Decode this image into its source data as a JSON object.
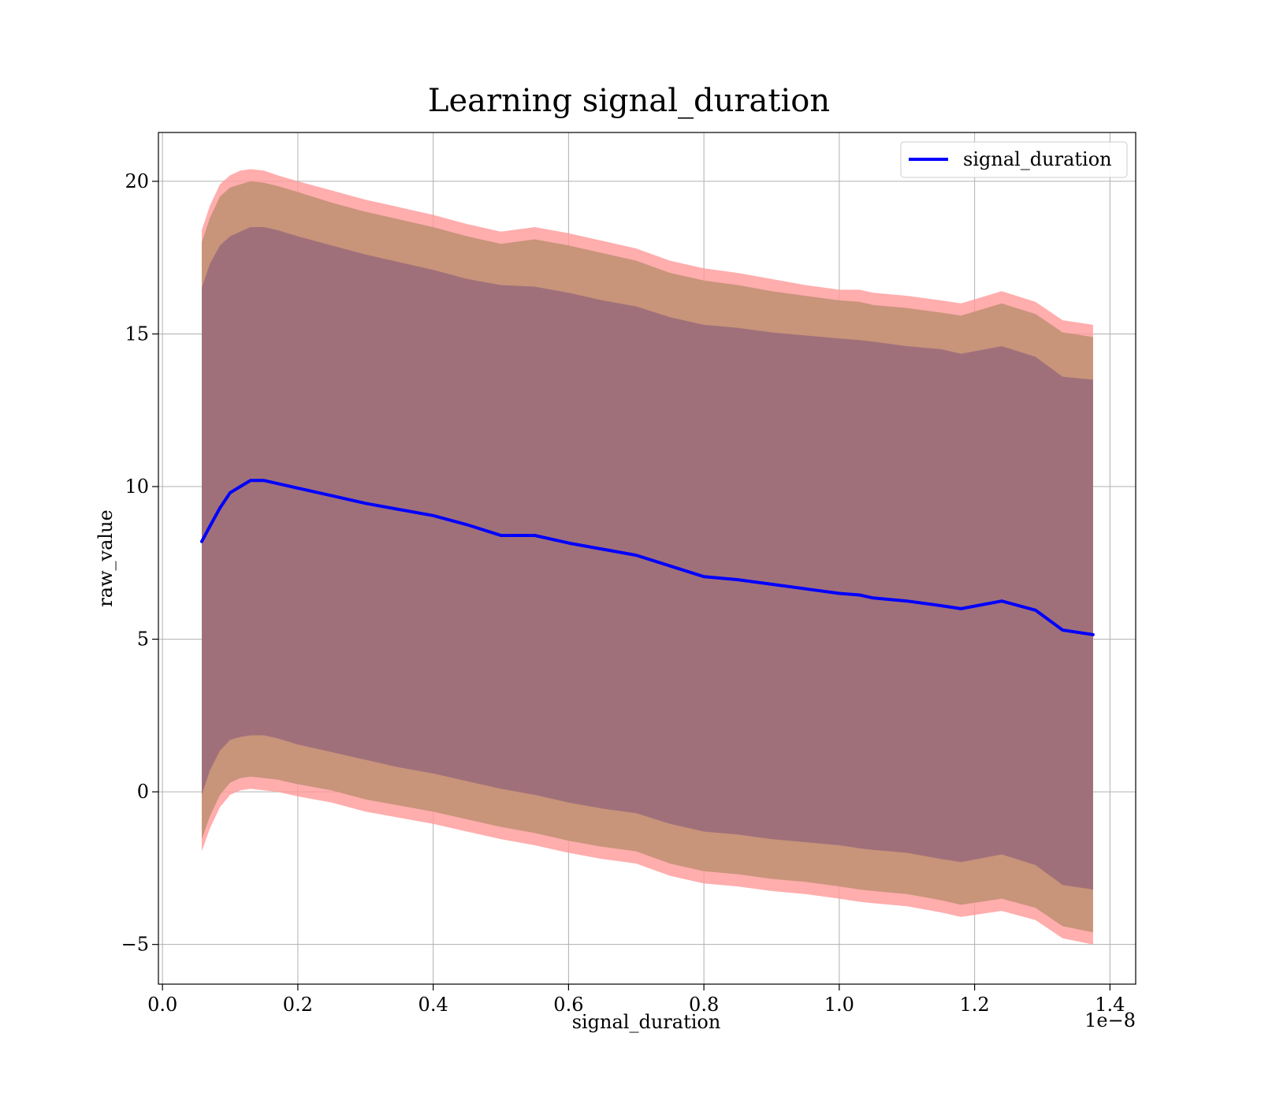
{
  "colors": {
    "mean_line": "#0000ff",
    "band_outer": "#ff9999",
    "band_middle": "#c8947a",
    "band_inner": "#a0707a",
    "grid": "#b0b0b0"
  },
  "chart_data": {
    "type": "line",
    "title": "Learning signal_duration",
    "xlabel": "signal_duration",
    "ylabel": "raw_value",
    "x_offset_text": "1e−8",
    "xlim": [
      -0.006,
      1.438
    ],
    "ylim": [
      -6.3,
      21.6
    ],
    "x_ticks": [
      0.0,
      0.2,
      0.4,
      0.6,
      0.8,
      1.0,
      1.2,
      1.4
    ],
    "x_tick_labels": [
      "0.0",
      "0.2",
      "0.4",
      "0.6",
      "0.8",
      "1.0",
      "1.2",
      "1.4"
    ],
    "y_ticks": [
      -5,
      0,
      5,
      10,
      15,
      20
    ],
    "y_tick_labels": [
      "−5",
      "0",
      "5",
      "10",
      "15",
      "20"
    ],
    "grid": true,
    "legend": {
      "position": "top-right",
      "entries": [
        "signal_duration"
      ]
    },
    "x": [
      0.058,
      0.07,
      0.085,
      0.1,
      0.115,
      0.13,
      0.15,
      0.17,
      0.2,
      0.25,
      0.3,
      0.35,
      0.4,
      0.45,
      0.5,
      0.55,
      0.6,
      0.65,
      0.7,
      0.75,
      0.8,
      0.85,
      0.9,
      0.95,
      1.0,
      1.03,
      1.05,
      1.1,
      1.15,
      1.18,
      1.24,
      1.29,
      1.33,
      1.375
    ],
    "series": [
      {
        "name": "signal_duration",
        "values": [
          8.2,
          8.7,
          9.3,
          9.8,
          10.0,
          10.2,
          10.2,
          10.1,
          9.95,
          9.7,
          9.45,
          9.25,
          9.05,
          8.75,
          8.4,
          8.4,
          8.15,
          7.95,
          7.75,
          7.4,
          7.05,
          6.95,
          6.8,
          6.65,
          6.5,
          6.45,
          6.35,
          6.25,
          6.1,
          6.0,
          6.25,
          5.95,
          5.3,
          5.15
        ]
      }
    ],
    "bands": [
      {
        "upper": [
          18.4,
          19.2,
          19.9,
          20.2,
          20.35,
          20.4,
          20.35,
          20.2,
          20.0,
          19.7,
          19.4,
          19.15,
          18.9,
          18.6,
          18.35,
          18.5,
          18.3,
          18.05,
          17.8,
          17.4,
          17.15,
          17.0,
          16.8,
          16.6,
          16.45,
          16.45,
          16.35,
          16.25,
          16.1,
          16.0,
          16.4,
          16.05,
          15.45,
          15.3
        ],
        "lower": [
          -1.95,
          -1.2,
          -0.5,
          -0.1,
          0.05,
          0.1,
          0.05,
          0.0,
          -0.15,
          -0.35,
          -0.65,
          -0.85,
          -1.05,
          -1.3,
          -1.55,
          -1.75,
          -2.0,
          -2.2,
          -2.35,
          -2.75,
          -3.0,
          -3.1,
          -3.25,
          -3.35,
          -3.5,
          -3.6,
          -3.65,
          -3.75,
          -3.95,
          -4.1,
          -3.9,
          -4.2,
          -4.8,
          -5.0
        ]
      },
      {
        "upper": [
          18.0,
          18.8,
          19.5,
          19.8,
          19.9,
          20.0,
          19.95,
          19.85,
          19.65,
          19.3,
          19.0,
          18.75,
          18.5,
          18.2,
          17.95,
          18.1,
          17.9,
          17.65,
          17.4,
          17.0,
          16.75,
          16.6,
          16.4,
          16.25,
          16.1,
          16.05,
          15.95,
          15.85,
          15.7,
          15.6,
          16.0,
          15.65,
          15.05,
          14.9
        ],
        "lower": [
          -1.55,
          -0.8,
          -0.1,
          0.3,
          0.45,
          0.5,
          0.45,
          0.4,
          0.25,
          0.05,
          -0.25,
          -0.45,
          -0.65,
          -0.9,
          -1.15,
          -1.35,
          -1.6,
          -1.8,
          -1.95,
          -2.35,
          -2.6,
          -2.7,
          -2.85,
          -2.95,
          -3.1,
          -3.2,
          -3.25,
          -3.35,
          -3.55,
          -3.7,
          -3.5,
          -3.8,
          -4.4,
          -4.6
        ]
      },
      {
        "upper": [
          16.5,
          17.3,
          17.9,
          18.2,
          18.35,
          18.5,
          18.5,
          18.4,
          18.2,
          17.9,
          17.6,
          17.35,
          17.1,
          16.8,
          16.6,
          16.55,
          16.35,
          16.1,
          15.9,
          15.55,
          15.3,
          15.2,
          15.05,
          14.95,
          14.85,
          14.8,
          14.75,
          14.6,
          14.5,
          14.35,
          14.6,
          14.25,
          13.6,
          13.5
        ],
        "lower": [
          -0.1,
          0.7,
          1.35,
          1.7,
          1.8,
          1.85,
          1.85,
          1.75,
          1.55,
          1.3,
          1.05,
          0.8,
          0.6,
          0.35,
          0.1,
          -0.1,
          -0.35,
          -0.55,
          -0.7,
          -1.05,
          -1.3,
          -1.4,
          -1.55,
          -1.65,
          -1.75,
          -1.85,
          -1.9,
          -2.0,
          -2.2,
          -2.3,
          -2.05,
          -2.4,
          -3.05,
          -3.2
        ]
      }
    ]
  }
}
